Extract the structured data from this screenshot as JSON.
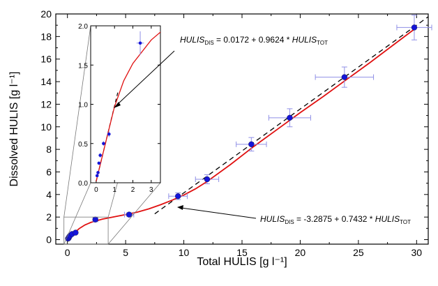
{
  "colors": {
    "marker": "#1515d8",
    "fit_line": "#e01010",
    "error_bar": "#8f8fe6",
    "linear_fit": "#000000"
  },
  "chart_data": [
    {
      "type": "scatter",
      "xlabel": "Total HULIS   [g l⁻¹]",
      "ylabel": "Dissolved HULIS   [g l⁻¹]",
      "xlim": [
        -1,
        31
      ],
      "ylim": [
        -0.4,
        20
      ],
      "xticks": [
        0,
        5,
        10,
        15,
        20,
        25,
        30
      ],
      "yticks": [
        0,
        2,
        4,
        6,
        8,
        10,
        12,
        14,
        16,
        18,
        20
      ],
      "series": [
        {
          "points": [
            {
              "x": 0.05,
              "y": 0.09,
              "xerr": 0.03,
              "yerr": 0.02
            },
            {
              "x": 0.1,
              "y": 0.13,
              "xerr": 0.03,
              "yerr": 0.02
            },
            {
              "x": 0.15,
              "y": 0.25,
              "xerr": 0.04,
              "yerr": 0.02
            },
            {
              "x": 0.22,
              "y": 0.35,
              "xerr": 0.04,
              "yerr": 0.03
            },
            {
              "x": 0.4,
              "y": 0.5,
              "xerr": 0.05,
              "yerr": 0.03
            },
            {
              "x": 0.7,
              "y": 0.62,
              "xerr": 0.06,
              "yerr": 0.04
            },
            {
              "x": 2.4,
              "y": 1.78,
              "xerr": 0.2,
              "yerr": 0.15
            },
            {
              "x": 5.3,
              "y": 2.22,
              "xerr": 0.4,
              "yerr": 0.15
            },
            {
              "x": 9.5,
              "y": 3.85,
              "xerr": 0.8,
              "yerr": 0.3
            },
            {
              "x": 12.0,
              "y": 5.35,
              "xerr": 1.0,
              "yerr": 0.4
            },
            {
              "x": 15.8,
              "y": 8.45,
              "xerr": 1.3,
              "yerr": 0.6
            },
            {
              "x": 19.1,
              "y": 10.8,
              "xerr": 1.8,
              "yerr": 0.8
            },
            {
              "x": 23.8,
              "y": 14.4,
              "xerr": 2.5,
              "yerr": 0.9
            },
            {
              "x": 29.8,
              "y": 18.8,
              "xerr": 1.5,
              "yerr": 1.1
            }
          ]
        }
      ],
      "fit_curve": {
        "x": [
          0,
          0.5,
          1,
          1.5,
          2,
          3,
          4,
          5,
          6,
          7,
          8,
          9,
          10,
          11,
          12,
          14,
          16,
          18,
          20,
          22,
          24,
          26,
          28,
          30
        ],
        "y": [
          0.02,
          0.5,
          0.97,
          1.3,
          1.52,
          1.82,
          2.02,
          2.22,
          2.44,
          2.73,
          3.09,
          3.5,
          3.95,
          4.5,
          5.15,
          6.65,
          8.25,
          9.75,
          11.25,
          12.7,
          14.2,
          15.7,
          17.25,
          18.8
        ]
      },
      "linear_fits": [
        {
          "intercept": -3.2875,
          "slope": 0.7432,
          "x_range": [
            7.5,
            31
          ]
        }
      ],
      "annotations": [
        {
          "parts": [
            {
              "text": "HULIS",
              "style": "italic"
            },
            {
              "text": "DIS",
              "style": "sub"
            },
            {
              "text": " = -3.2875 + 0.7432 * "
            },
            {
              "text": "HULIS",
              "style": "italic"
            },
            {
              "text": "TOT",
              "style": "sub"
            }
          ]
        }
      ]
    },
    {
      "type": "scatter",
      "inset": true,
      "xlim": [
        -0.3,
        3.5
      ],
      "ylim": [
        0,
        2
      ],
      "xticks": [
        0,
        1,
        2,
        3
      ],
      "yticks": [
        "0.0",
        "0.5",
        "1.0",
        "1.5",
        "2.0"
      ],
      "linear_fits": [
        {
          "intercept": 0.0172,
          "slope": 0.9624,
          "x_range": [
            0,
            1.2
          ]
        }
      ],
      "annotations": [
        {
          "parts": [
            {
              "text": "HULIS",
              "style": "italic"
            },
            {
              "text": "DIS",
              "style": "sub"
            },
            {
              "text": " = 0.0172 + 0.9624 * "
            },
            {
              "text": "HULIS",
              "style": "italic"
            },
            {
              "text": "TOT",
              "style": "sub"
            }
          ]
        }
      ]
    }
  ]
}
